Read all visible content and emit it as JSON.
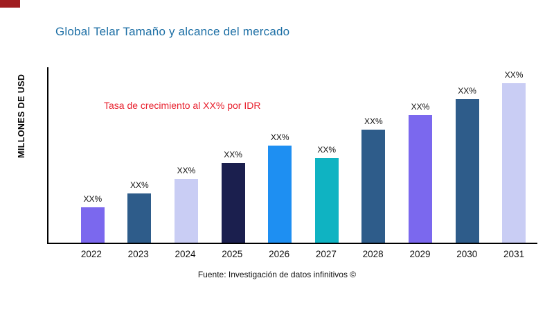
{
  "brand": {
    "corner_mark_color": "#a01d20"
  },
  "chart": {
    "title": "Global Telar Tamaño y alcance del mercado",
    "title_color": "#1d6fa5",
    "ylabel": "MILLONES DE USD",
    "annotation": "Tasa de crecimiento al XX% por IDR",
    "annotation_color": "#e8212e",
    "source": "Fuente: Investigación de datos infinitivos ©"
  },
  "chart_data": {
    "type": "bar",
    "title": "Global Telar Tamaño y alcance del mercado",
    "xlabel": "",
    "ylabel": "MILLONES DE USD",
    "categories": [
      "2022",
      "2023",
      "2024",
      "2025",
      "2026",
      "2027",
      "2028",
      "2029",
      "2030",
      "2031"
    ],
    "values": [
      22,
      31,
      40,
      50,
      61,
      53,
      71,
      80,
      90,
      100
    ],
    "value_labels": [
      "XX%",
      "XX%",
      "XX%",
      "XX%",
      "XX%",
      "XX%",
      "XX%",
      "XX%",
      "XX%",
      "XX%"
    ],
    "bar_colors": [
      "#7b68ee",
      "#2e5c8a",
      "#c9cdf4",
      "#1b1f4e",
      "#1e8ff2",
      "#0fb3c2",
      "#2e5c8a",
      "#7b68ee",
      "#2e5c8a",
      "#c9cdf4"
    ],
    "ylim": [
      0,
      110
    ],
    "grid": false,
    "legend": false,
    "annotation": "Tasa de crecimiento al XX% por IDR"
  }
}
